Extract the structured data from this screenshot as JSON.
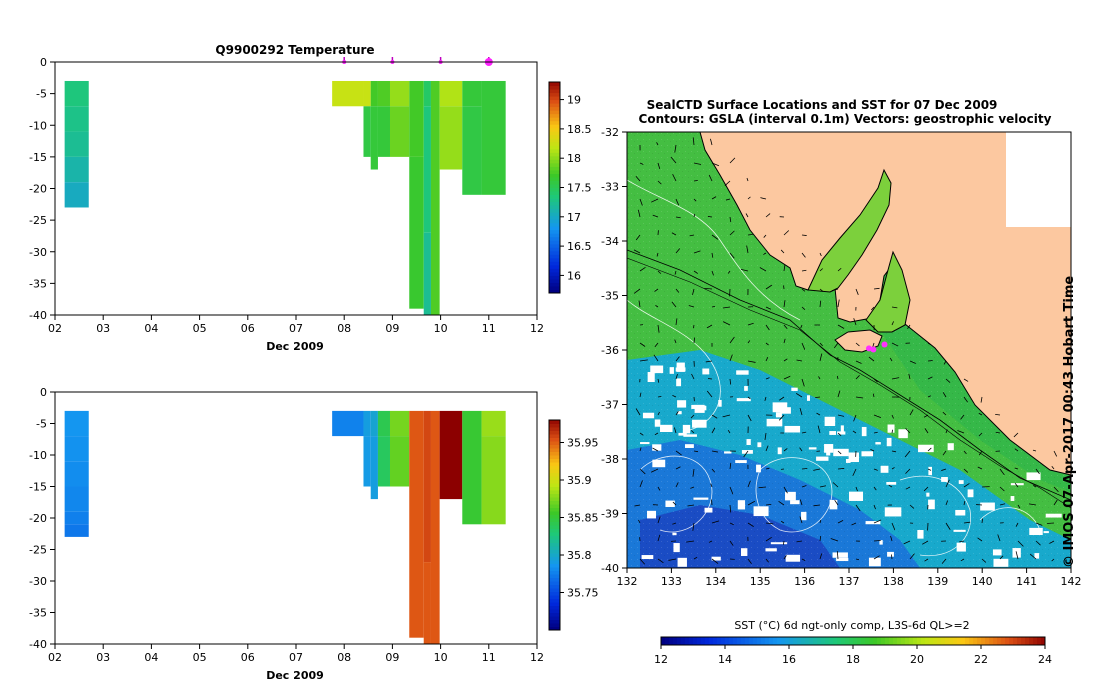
{
  "figure": {
    "credit": "© IMOS 07-Apr-2017 00:43 Hobart Time"
  },
  "chart_data": [
    {
      "type": "heatmap",
      "title": "Q9900292  Temperature",
      "xlabel": "Dec 2009",
      "ylabel": "",
      "xlim": [
        2,
        12
      ],
      "ylim": [
        -40,
        0
      ],
      "x_ticks": [
        "02",
        "03",
        "04",
        "05",
        "06",
        "07",
        "08",
        "09",
        "10",
        "11",
        "12"
      ],
      "y_ticks": [
        "0",
        "-5",
        "-10",
        "-15",
        "-20",
        "-25",
        "-30",
        "-35",
        "-40"
      ],
      "profile_markers_x": [
        8.0,
        9.0,
        10.0,
        11.0
      ],
      "colorbar": {
        "range": [
          15.7,
          19.3
        ],
        "ticks": [
          "16",
          "16.5",
          "17",
          "17.5",
          "18",
          "18.5",
          "19"
        ]
      },
      "profiles": [
        {
          "x0": 2.2,
          "x1": 2.7,
          "cells": [
            [
              -3,
              -7,
              17.3
            ],
            [
              -7,
              -11,
              17.25
            ],
            [
              -11,
              -15,
              17.2
            ],
            [
              -15,
              -19,
              17.1
            ],
            [
              -19,
              -23,
              17.0
            ]
          ]
        },
        {
          "x0": 7.75,
          "x1": 8.4,
          "cells": [
            [
              -3,
              -7,
              18.2
            ]
          ]
        },
        {
          "x0": 8.4,
          "x1": 8.55,
          "cells": [
            [
              -3,
              -7,
              18.2
            ],
            [
              -7,
              -15,
              17.55
            ]
          ]
        },
        {
          "x0": 8.55,
          "x1": 8.7,
          "cells": [
            [
              -3,
              -7,
              17.7
            ],
            [
              -7,
              -17,
              17.6
            ]
          ]
        },
        {
          "x0": 8.7,
          "x1": 8.95,
          "cells": [
            [
              -3,
              -7,
              17.75
            ],
            [
              -7,
              -15,
              17.6
            ]
          ]
        },
        {
          "x0": 8.95,
          "x1": 9.35,
          "cells": [
            [
              -3,
              -7,
              18.0
            ],
            [
              -7,
              -15,
              17.85
            ]
          ]
        },
        {
          "x0": 9.35,
          "x1": 9.65,
          "cells": [
            [
              -3,
              -15,
              17.7
            ],
            [
              -15,
              -39,
              17.65
            ]
          ]
        },
        {
          "x0": 9.65,
          "x1": 9.8,
          "cells": [
            [
              -3,
              -7,
              17.4
            ],
            [
              -7,
              -27,
              17.3
            ],
            [
              -27,
              -40,
              17.2
            ]
          ]
        },
        {
          "x0": 9.8,
          "x1": 9.98,
          "cells": [
            [
              -3,
              -40,
              17.75
            ]
          ]
        },
        {
          "x0": 9.98,
          "x1": 10.45,
          "cells": [
            [
              -3,
              -7,
              18.1
            ],
            [
              -7,
              -17,
              18.0
            ]
          ]
        },
        {
          "x0": 10.45,
          "x1": 10.85,
          "cells": [
            [
              -3,
              -7,
              17.6
            ],
            [
              -7,
              -21,
              17.55
            ]
          ]
        },
        {
          "x0": 10.85,
          "x1": 11.35,
          "cells": [
            [
              -3,
              -21,
              17.6
            ]
          ]
        }
      ]
    },
    {
      "type": "heatmap",
      "title": "",
      "xlabel": "Dec 2009",
      "ylabel": "",
      "xlim": [
        2,
        12
      ],
      "ylim": [
        -40,
        0
      ],
      "x_ticks": [
        "02",
        "03",
        "04",
        "05",
        "06",
        "07",
        "08",
        "09",
        "10",
        "11",
        "12"
      ],
      "y_ticks": [
        "0",
        "-5",
        "-10",
        "-15",
        "-20",
        "-25",
        "-30",
        "-35",
        "-40"
      ],
      "colorbar": {
        "range": [
          35.7,
          35.98
        ],
        "ticks": [
          "35.75",
          "35.8",
          "35.85",
          "35.9",
          "35.95"
        ]
      },
      "profiles": [
        {
          "x0": 2.2,
          "x1": 2.7,
          "cells": [
            [
              -3,
              -7,
              35.784
            ],
            [
              -7,
              -11,
              35.782
            ],
            [
              -11,
              -15,
              35.78
            ],
            [
              -15,
              -19,
              35.777
            ],
            [
              -19,
              -21,
              35.774
            ],
            [
              -21,
              -23,
              35.77
            ]
          ]
        },
        {
          "x0": 7.75,
          "x1": 8.4,
          "cells": [
            [
              -3,
              -7,
              35.775
            ]
          ]
        },
        {
          "x0": 8.4,
          "x1": 8.55,
          "cells": [
            [
              -3,
              -7,
              35.79
            ],
            [
              -7,
              -15,
              35.788
            ]
          ]
        },
        {
          "x0": 8.55,
          "x1": 8.7,
          "cells": [
            [
              -3,
              -7,
              35.795
            ],
            [
              -7,
              -17,
              35.79
            ]
          ]
        },
        {
          "x0": 8.7,
          "x1": 8.95,
          "cells": [
            [
              -3,
              -7,
              35.84
            ],
            [
              -7,
              -15,
              35.835
            ]
          ]
        },
        {
          "x0": 8.95,
          "x1": 9.35,
          "cells": [
            [
              -3,
              -7,
              35.87
            ],
            [
              -7,
              -15,
              35.865
            ]
          ]
        },
        {
          "x0": 9.35,
          "x1": 9.65,
          "cells": [
            [
              -3,
              -39,
              35.95
            ]
          ]
        },
        {
          "x0": 9.65,
          "x1": 9.8,
          "cells": [
            [
              -3,
              -27,
              35.955
            ],
            [
              -27,
              -40,
              35.95
            ]
          ]
        },
        {
          "x0": 9.8,
          "x1": 9.98,
          "cells": [
            [
              -3,
              -40,
              35.95
            ]
          ]
        },
        {
          "x0": 9.98,
          "x1": 10.45,
          "cells": [
            [
              -3,
              -17,
              35.98
            ]
          ]
        },
        {
          "x0": 10.45,
          "x1": 10.85,
          "cells": [
            [
              -3,
              -21,
              35.85
            ]
          ]
        },
        {
          "x0": 10.85,
          "x1": 11.35,
          "cells": [
            [
              -3,
              -7,
              35.88
            ],
            [
              -7,
              -21,
              35.875
            ]
          ]
        }
      ]
    },
    {
      "type": "heatmap",
      "title": "SealCTD Surface Locations and SST for 07 Dec 2009",
      "subtitle": "Contours: GSLA (interval 0.1m) Vectors: geostrophic velocity",
      "xlabel": "",
      "ylabel": "",
      "xlim": [
        132,
        142
      ],
      "ylim": [
        -40,
        -32
      ],
      "x_ticks": [
        "132",
        "133",
        "134",
        "135",
        "136",
        "137",
        "138",
        "139",
        "140",
        "141",
        "142"
      ],
      "y_ticks": [
        "-32",
        "-33",
        "-34",
        "-35",
        "-36",
        "-37",
        "-38",
        "-39",
        "-40"
      ],
      "land_color": "#fcc8a0",
      "seal_locations": [
        [
          137.45,
          -35.97
        ],
        [
          137.55,
          -35.99
        ],
        [
          137.8,
          -35.9
        ]
      ],
      "colorbar": {
        "label": "SST (°C) 6d ngt-only comp, L3S-6d QL>=2",
        "range": [
          12,
          24
        ],
        "ticks": [
          "12",
          "14",
          "16",
          "18",
          "20",
          "22",
          "24"
        ]
      }
    }
  ]
}
